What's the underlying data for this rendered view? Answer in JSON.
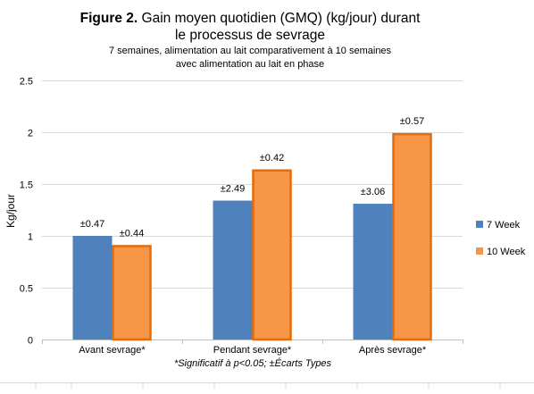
{
  "chart_data": {
    "type": "bar",
    "title_bold": "Figure 2.",
    "title_rest": " Gain moyen quotidien (GMQ) (kg/jour) durant",
    "title_line2": "le processus de sevrage",
    "subtitle_line1": "7 semaines, alimentation au lait comparativement à 10 semaines",
    "subtitle_line2": "avec alimentation au lait en phase",
    "ylabel": "Kg/jour",
    "xlabel": "",
    "footnote": "*Significatif à p<0.05; ±Écarts Types",
    "categories": [
      "Avant sevrage*",
      "Pendant sevrage*",
      "Après sevrage*"
    ],
    "ylim": [
      0,
      2.5
    ],
    "yticks": [
      "0",
      "0.5",
      "1",
      "1.5",
      "2",
      "2.5"
    ],
    "ytick_values": [
      0,
      0.5,
      1,
      1.5,
      2,
      2.5
    ],
    "grid": true,
    "legend_position": "right",
    "series": [
      {
        "name": "7 Week",
        "color": "#4F81BD",
        "values": [
          1.0,
          1.34,
          1.31
        ],
        "labels": [
          "±0.47",
          "±2.49",
          "±3.06"
        ]
      },
      {
        "name": "10 Week",
        "color": "#F79646",
        "border": "#E46C0A",
        "values": [
          0.91,
          1.64,
          1.99
        ],
        "labels": [
          "±0.44",
          "±0.42",
          "±0.57"
        ]
      }
    ]
  }
}
